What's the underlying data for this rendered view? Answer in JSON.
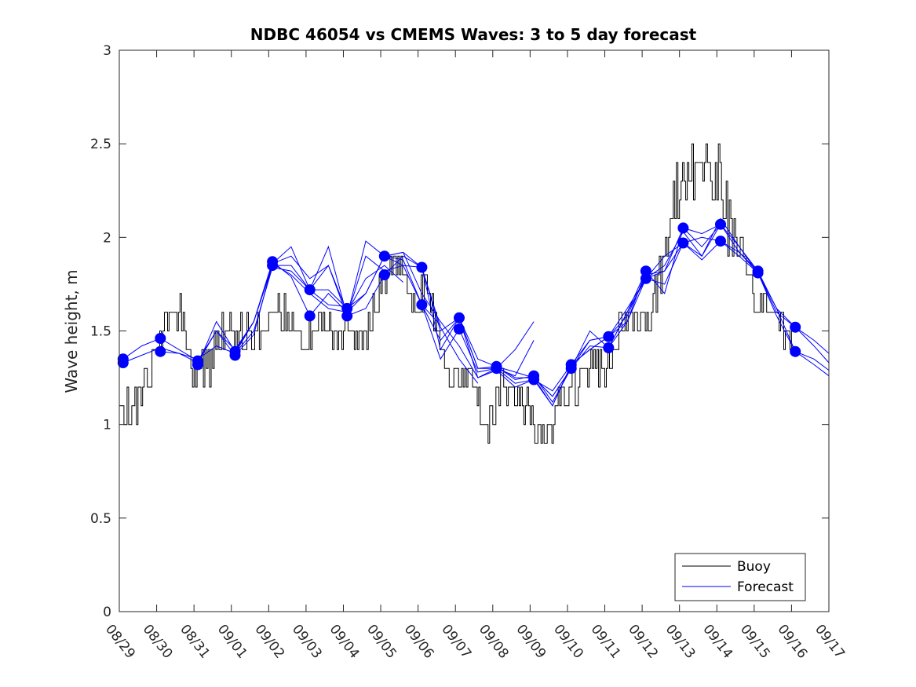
{
  "chart_data": {
    "type": "line",
    "title": "NDBC 46054 vs CMEMS Waves: 3 to 5 day forecast",
    "xlabel": "",
    "ylabel": "Wave height, m",
    "ylim": [
      0,
      3
    ],
    "xlim": [
      0,
      19
    ],
    "yticks": [
      0,
      0.5,
      1,
      1.5,
      2,
      2.5,
      3
    ],
    "ytick_labels": [
      "0",
      "0.5",
      "1",
      "1.5",
      "2",
      "2.5",
      "3"
    ],
    "xtick_labels": [
      "08/29",
      "08/30",
      "08/31",
      "09/01",
      "09/02",
      "09/03",
      "09/04",
      "09/05",
      "09/06",
      "09/07",
      "09/08",
      "09/09",
      "09/10",
      "09/11",
      "09/12",
      "09/13",
      "09/14",
      "09/15",
      "09/16",
      "09/17"
    ],
    "grid": false,
    "legend": {
      "location": "bottom-right",
      "entries": [
        "Buoy",
        "Forecast"
      ]
    },
    "colors": {
      "buoy": "#000000",
      "forecast": "#0000ff",
      "axis": "#262626"
    },
    "buoy_anchor": {
      "x": [
        0,
        0.3,
        0.6,
        0.9,
        1.2,
        1.6,
        2.0,
        2.4,
        2.8,
        3.2,
        3.6,
        3.9,
        4.2,
        4.6,
        5.0,
        5.4,
        5.8,
        6.2,
        6.6,
        7.0,
        7.4,
        7.8,
        8.2,
        8.6,
        9.0,
        9.4,
        9.8,
        10.2,
        10.6,
        11.0,
        11.4,
        11.8,
        12.2,
        12.6,
        13.0,
        13.4,
        13.8,
        14.2,
        14.6,
        15.0,
        15.4,
        15.8,
        16.2,
        16.6,
        17.0,
        17.4,
        17.7,
        18.0
      ],
      "y": [
        1.05,
        1.1,
        1.15,
        1.3,
        1.55,
        1.6,
        1.3,
        1.3,
        1.5,
        1.5,
        1.45,
        1.5,
        1.65,
        1.55,
        1.45,
        1.55,
        1.5,
        1.55,
        1.45,
        1.75,
        1.9,
        1.7,
        1.7,
        1.45,
        1.2,
        1.3,
        1.0,
        1.2,
        1.15,
        1.05,
        0.95,
        1.15,
        1.2,
        1.3,
        1.25,
        1.55,
        1.55,
        1.6,
        1.9,
        2.3,
        2.4,
        2.4,
        2.2,
        1.9,
        1.65,
        1.6,
        1.55,
        1.5
      ]
    },
    "series": [
      {
        "name": "Forecast",
        "role": "runs",
        "runs": [
          {
            "x": [
              0.1,
              0.6,
              1.1,
              1.6,
              2.1,
              2.6,
              3.1,
              3.6,
              4.1,
              4.6,
              5.1,
              5.6,
              6.1
            ],
            "y": [
              1.33,
              1.37,
              1.41,
              1.38,
              1.35,
              1.42,
              1.38,
              1.5,
              1.84,
              1.82,
              1.72,
              1.64,
              1.63
            ]
          },
          {
            "x": [
              0.1,
              0.6,
              1.1,
              1.6,
              2.1,
              2.6,
              3.1,
              3.6,
              4.1,
              4.6,
              5.1,
              5.6,
              6.1
            ],
            "y": [
              1.35,
              1.42,
              1.46,
              1.4,
              1.34,
              1.5,
              1.4,
              1.55,
              1.87,
              1.79,
              1.58,
              1.7,
              1.6
            ]
          },
          {
            "x": [
              1.1,
              1.6,
              2.1,
              2.6,
              3.1,
              3.6,
              4.1,
              4.6,
              5.1,
              5.6,
              6.1,
              6.6,
              7.1,
              7.6
            ],
            "y": [
              1.39,
              1.38,
              1.33,
              1.5,
              1.37,
              1.48,
              1.86,
              1.8,
              1.7,
              1.62,
              1.6,
              1.78,
              1.85,
              1.76
            ]
          },
          {
            "x": [
              2.1,
              2.6,
              3.1,
              3.6,
              4.1,
              4.6,
              5.1,
              5.6,
              6.1,
              6.6,
              7.1,
              7.6,
              8.1,
              8.6
            ],
            "y": [
              1.32,
              1.55,
              1.39,
              1.55,
              1.85,
              1.85,
              1.72,
              1.72,
              1.62,
              1.7,
              1.9,
              1.85,
              1.64,
              1.53
            ]
          },
          {
            "x": [
              3.1,
              3.6,
              4.1,
              4.6,
              5.1,
              5.6,
              6.1,
              6.6,
              7.1,
              7.6,
              8.1,
              8.6,
              9.1,
              9.6
            ],
            "y": [
              1.38,
              1.55,
              1.86,
              1.9,
              1.78,
              1.85,
              1.58,
              1.62,
              1.8,
              1.9,
              1.84,
              1.52,
              1.35,
              1.22
            ]
          },
          {
            "x": [
              4.1,
              4.6,
              5.1,
              5.6,
              6.1,
              6.6,
              7.1,
              7.6,
              8.1,
              8.6,
              9.1,
              9.6,
              10.1,
              10.6,
              11.1
            ],
            "y": [
              1.86,
              1.95,
              1.72,
              1.85,
              1.6,
              1.7,
              1.9,
              1.92,
              1.7,
              1.55,
              1.42,
              1.25,
              1.3,
              1.4,
              1.55
            ]
          },
          {
            "x": [
              5.1,
              5.6,
              6.1,
              6.6,
              7.1,
              7.6,
              8.1,
              8.6,
              9.1,
              9.6,
              10.1,
              10.6,
              11.1
            ],
            "y": [
              1.72,
              1.95,
              1.58,
              1.9,
              1.82,
              1.85,
              1.84,
              1.4,
              1.57,
              1.3,
              1.3,
              1.26,
              1.45
            ]
          },
          {
            "x": [
              6.1,
              6.6,
              7.1,
              7.6,
              8.1,
              8.6,
              9.1,
              9.6,
              10.1,
              10.6,
              11.1,
              11.6,
              12.1
            ],
            "y": [
              1.58,
              1.98,
              1.9,
              1.88,
              1.64,
              1.35,
              1.51,
              1.28,
              1.3,
              1.22,
              1.24,
              1.1,
              1.32
            ]
          },
          {
            "x": [
              7.1,
              7.6,
              8.1,
              8.6,
              9.1,
              9.6,
              10.1,
              10.6,
              11.1,
              11.6,
              12.1,
              12.6,
              13.1
            ],
            "y": [
              1.9,
              1.92,
              1.84,
              1.5,
              1.57,
              1.35,
              1.31,
              1.28,
              1.25,
              1.15,
              1.3,
              1.45,
              1.47
            ]
          },
          {
            "x": [
              8.1,
              8.6,
              9.1,
              9.6,
              10.1,
              10.6,
              11.1,
              11.6,
              12.1,
              12.6,
              13.1,
              13.6,
              14.1
            ],
            "y": [
              1.64,
              1.45,
              1.57,
              1.3,
              1.31,
              1.24,
              1.26,
              1.12,
              1.3,
              1.5,
              1.41,
              1.6,
              1.82
            ]
          },
          {
            "x": [
              9.1,
              9.6,
              10.1,
              10.6,
              11.1,
              11.6,
              12.1,
              12.6,
              13.1,
              13.6,
              14.1,
              14.6,
              15.1
            ],
            "y": [
              1.57,
              1.25,
              1.29,
              1.2,
              1.24,
              1.18,
              1.32,
              1.45,
              1.47,
              1.62,
              1.78,
              1.75,
              1.97
            ]
          },
          {
            "x": [
              10.1,
              10.6,
              11.1,
              11.6,
              12.1,
              12.6,
              13.1,
              13.6,
              14.1,
              14.6,
              15.1,
              15.6,
              16.1
            ],
            "y": [
              1.31,
              1.25,
              1.25,
              1.1,
              1.32,
              1.4,
              1.47,
              1.55,
              1.82,
              1.7,
              2.05,
              2.02,
              2.07
            ]
          },
          {
            "x": [
              11.1,
              11.6,
              12.1,
              12.6,
              13.1,
              13.6,
              14.1,
              14.6,
              15.1,
              15.6,
              16.1,
              16.6,
              17.1
            ],
            "y": [
              1.25,
              1.15,
              1.3,
              1.42,
              1.41,
              1.6,
              1.78,
              1.82,
              1.97,
              1.9,
              2.1,
              1.95,
              1.82
            ]
          },
          {
            "x": [
              12.1,
              12.6,
              13.1,
              13.6,
              14.1,
              14.6,
              15.1,
              15.6,
              16.1,
              16.6,
              17.1,
              17.6,
              18.1,
              18.6,
              19.0
            ],
            "y": [
              1.32,
              1.4,
              1.47,
              1.58,
              1.8,
              1.82,
              2.05,
              1.95,
              2.07,
              1.92,
              1.82,
              1.62,
              1.52,
              1.45,
              1.38
            ]
          },
          {
            "x": [
              13.1,
              13.6,
              14.1,
              14.6,
              15.1,
              15.6,
              16.1,
              16.6,
              17.1,
              17.6,
              18.1,
              18.6,
              19.0
            ],
            "y": [
              1.41,
              1.55,
              1.78,
              1.9,
              1.97,
              2.0,
              1.98,
              1.9,
              1.81,
              1.58,
              1.39,
              1.35,
              1.29
            ]
          },
          {
            "x": [
              14.1,
              14.6,
              15.1,
              15.6,
              16.1,
              16.6,
              17.1,
              17.6,
              18.1,
              18.6,
              19.0
            ],
            "y": [
              1.78,
              1.85,
              2.03,
              1.9,
              2.07,
              1.95,
              1.81,
              1.6,
              1.52,
              1.42,
              1.33
            ]
          },
          {
            "x": [
              15.1,
              15.6,
              16.1,
              16.6,
              17.1,
              17.6,
              18.1,
              18.6,
              19.0
            ],
            "y": [
              1.97,
              1.88,
              1.98,
              1.92,
              1.81,
              1.62,
              1.39,
              1.32,
              1.26
            ]
          }
        ]
      }
    ],
    "forecast_markers": {
      "x": [
        0.1,
        0.1,
        1.1,
        1.1,
        2.1,
        2.1,
        3.1,
        3.1,
        4.1,
        4.1,
        5.1,
        5.1,
        6.1,
        6.1,
        7.1,
        7.1,
        8.1,
        8.1,
        9.1,
        9.1,
        10.1,
        10.1,
        11.1,
        11.1,
        12.1,
        12.1,
        13.1,
        13.1,
        14.1,
        14.1,
        15.1,
        15.1,
        16.1,
        16.1,
        17.1,
        17.1,
        18.1,
        18.1
      ],
      "y": [
        1.33,
        1.35,
        1.46,
        1.39,
        1.34,
        1.32,
        1.39,
        1.37,
        1.87,
        1.85,
        1.72,
        1.58,
        1.62,
        1.58,
        1.9,
        1.8,
        1.84,
        1.64,
        1.57,
        1.51,
        1.31,
        1.3,
        1.26,
        1.24,
        1.32,
        1.3,
        1.47,
        1.41,
        1.82,
        1.78,
        2.05,
        1.97,
        2.07,
        1.98,
        1.82,
        1.81,
        1.52,
        1.39
      ]
    }
  }
}
